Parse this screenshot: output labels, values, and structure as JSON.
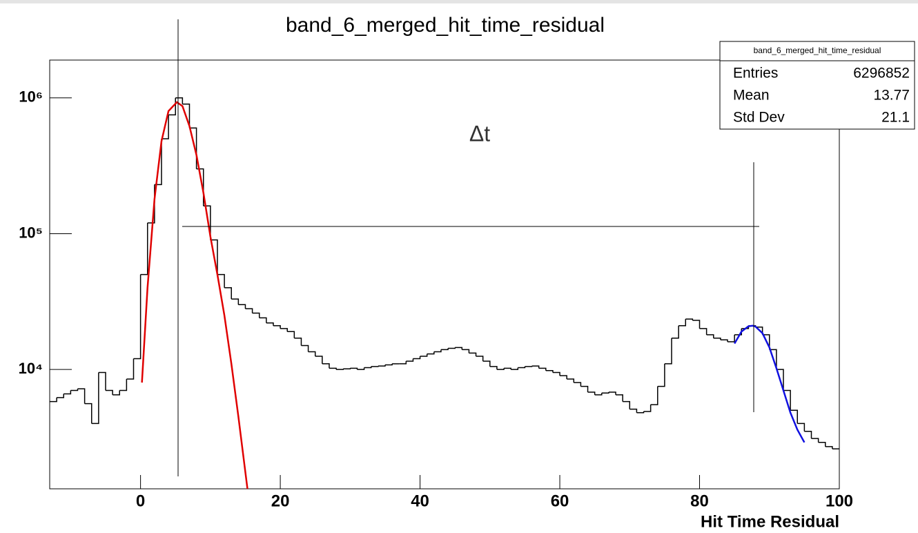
{
  "chart_data": {
    "type": "histogram",
    "title": "band_6_merged_hit_time_residual",
    "x_label": "Hit Time Residual",
    "annotation": "Δt",
    "log_y": true,
    "color": "#000000",
    "xlim": [
      -13,
      100
    ],
    "ylim": [
      1320,
      1900000
    ],
    "xticks": [
      0,
      20,
      40,
      60,
      80,
      100
    ],
    "yticks": [
      {
        "value": 10000,
        "label": "10⁴"
      },
      {
        "value": 100000,
        "label": "10⁵"
      },
      {
        "value": 1000000,
        "label": "10⁶"
      }
    ],
    "bins": [
      -13,
      -12,
      -11,
      -10,
      -9,
      -8,
      -7,
      -6,
      -5,
      -4,
      -3,
      -2,
      -1,
      0,
      1,
      2,
      3,
      4,
      5,
      6,
      7,
      8,
      9,
      10,
      11,
      12,
      13,
      14,
      15,
      16,
      17,
      18,
      19,
      20,
      21,
      22,
      23,
      24,
      25,
      26,
      27,
      28,
      29,
      30,
      31,
      32,
      33,
      34,
      35,
      36,
      37,
      38,
      39,
      40,
      41,
      42,
      43,
      44,
      45,
      46,
      47,
      48,
      49,
      50,
      51,
      52,
      53,
      54,
      55,
      56,
      57,
      58,
      59,
      60,
      61,
      62,
      63,
      64,
      65,
      66,
      67,
      68,
      69,
      70,
      71,
      72,
      73,
      74,
      75,
      76,
      77,
      78,
      79,
      80,
      81,
      82,
      83,
      84,
      85,
      86,
      87,
      88,
      89,
      90,
      91,
      92,
      93,
      94,
      95,
      96,
      97,
      98,
      99,
      100
    ],
    "values": [
      5800,
      6200,
      6600,
      7000,
      7200,
      5600,
      4000,
      9500,
      7000,
      6500,
      7000,
      8500,
      12000,
      50000,
      120000,
      230000,
      500000,
      750000,
      1000000,
      900000,
      600000,
      300000,
      160000,
      90000,
      50000,
      40000,
      33000,
      30000,
      28000,
      26000,
      24000,
      22000,
      21000,
      20000,
      19000,
      17000,
      15000,
      13500,
      12500,
      11000,
      10200,
      10000,
      10100,
      10200,
      10000,
      10300,
      10500,
      10600,
      10800,
      11000,
      11000,
      11500,
      12000,
      12500,
      13000,
      13500,
      14000,
      14300,
      14500,
      14000,
      13200,
      12500,
      11500,
      10500,
      10000,
      10200,
      10000,
      10300,
      10500,
      10600,
      10200,
      9800,
      9500,
      9000,
      8500,
      8000,
      7500,
      6800,
      6500,
      6700,
      6800,
      6500,
      5800,
      5100,
      4800,
      4900,
      5500,
      7500,
      11000,
      17000,
      21000,
      23500,
      23000,
      20000,
      18000,
      17000,
      16500,
      16000,
      18000,
      20000,
      21000,
      20500,
      18000,
      14000,
      10000,
      7000,
      5000,
      4000,
      3500,
      3100,
      2900,
      2700,
      2600
    ],
    "fits": [
      {
        "color": "#e00000",
        "x": [
          0.2,
          1,
          2,
          3,
          4,
          5.2,
          6,
          7,
          8,
          9,
          10,
          11,
          12,
          13,
          14,
          15.3
        ],
        "y": [
          8000,
          40000,
          180000,
          480000,
          800000,
          930000,
          870000,
          620000,
          380000,
          200000,
          95000,
          50000,
          25000,
          11000,
          4500,
          1320
        ]
      },
      {
        "color": "#1010e0",
        "x": [
          85,
          86,
          87,
          87.6,
          88,
          89,
          90,
          91,
          92,
          93,
          94,
          95
        ],
        "y": [
          15500,
          19000,
          20800,
          21000,
          20700,
          18500,
          14500,
          10200,
          7000,
          4800,
          3600,
          2900
        ]
      }
    ],
    "stats": {
      "title": "band_6_merged_hit_time_residual",
      "rows": [
        [
          "Entries",
          6296852
        ],
        [
          "Mean",
          13.77
        ],
        [
          "Std Dev",
          21.1
        ]
      ]
    }
  }
}
